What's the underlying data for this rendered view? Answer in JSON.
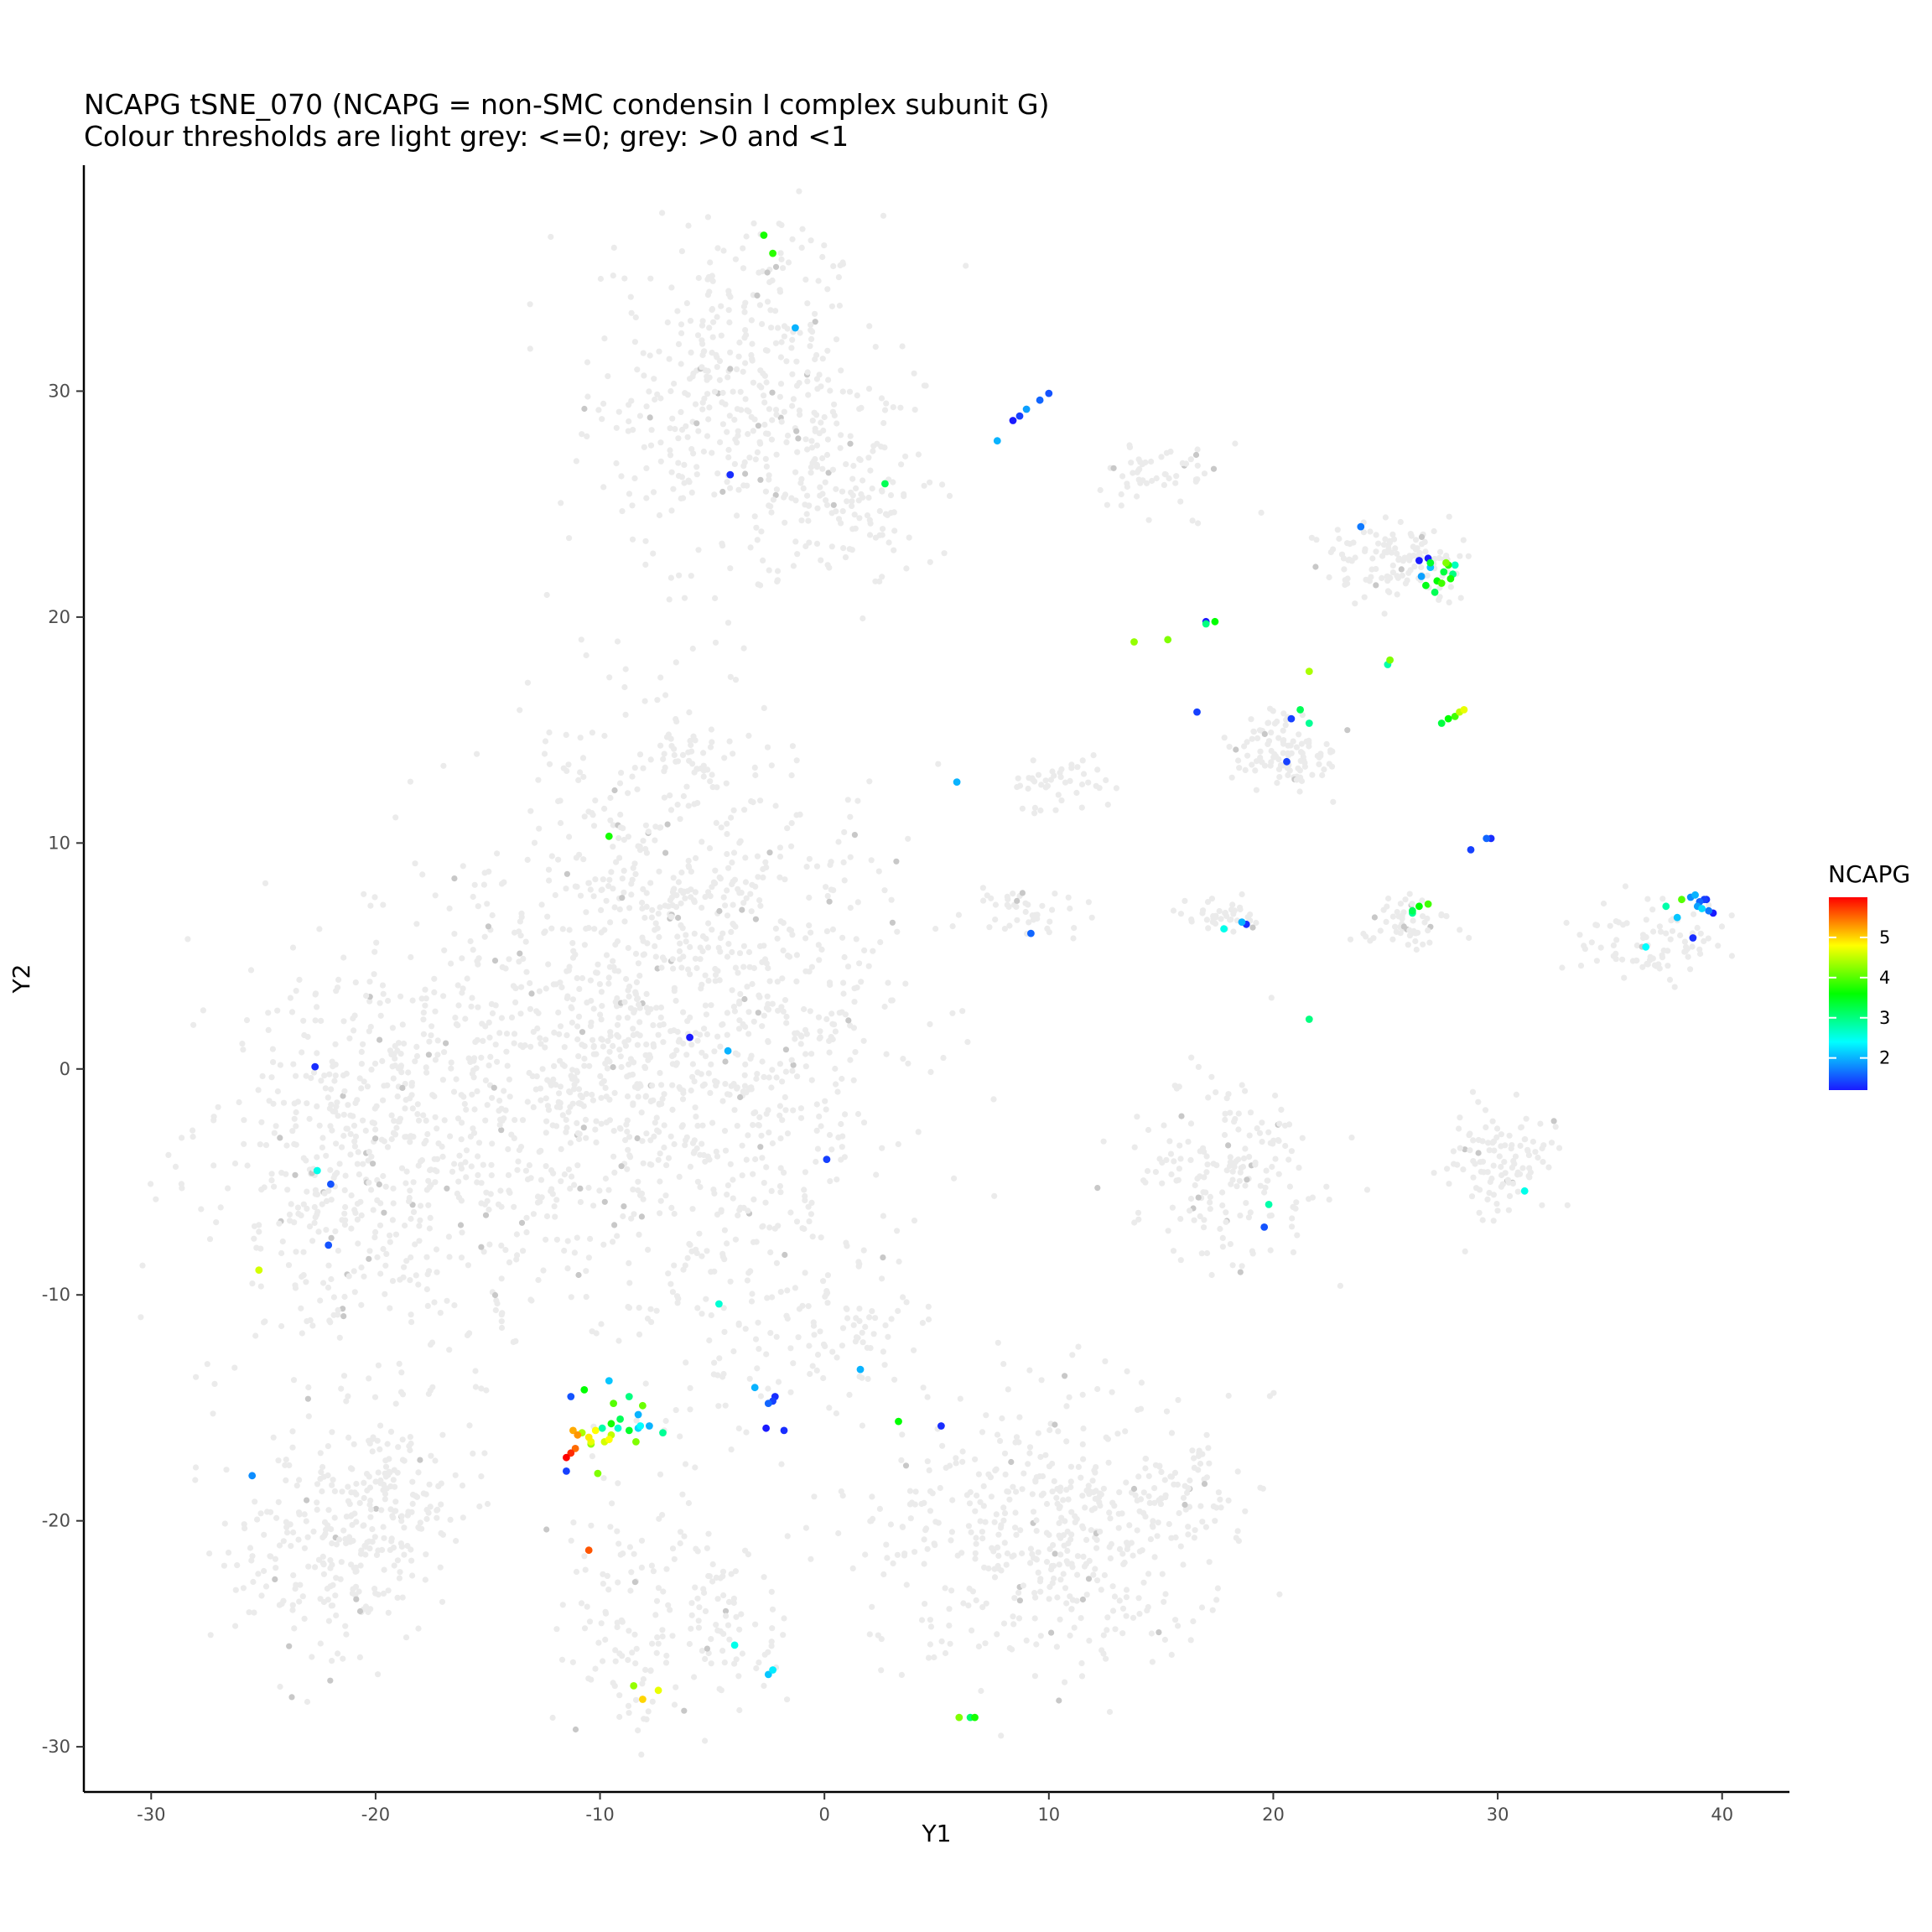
{
  "chart_data": {
    "type": "scatter",
    "title": "NCAPG tSNE_070 (NCAPG = non-SMC condensin I complex subunit G)",
    "subtitle": "Colour thresholds are light grey: <=0; grey: >0 and <1",
    "xlabel": "Y1",
    "ylabel": "Y2",
    "xlim": [
      -33,
      43
    ],
    "ylim": [
      -32,
      40
    ],
    "x_ticks": [
      -30,
      -20,
      -10,
      0,
      10,
      20,
      30,
      40
    ],
    "y_ticks": [
      -30,
      -20,
      -10,
      0,
      10,
      20,
      30
    ],
    "grid": false,
    "legend": {
      "title": "NCAPG",
      "position": "right",
      "min": 1.2,
      "max": 6.0,
      "ticks": [
        2,
        3,
        4,
        5
      ],
      "colors": [
        "#1a1aff",
        "#00ffff",
        "#00ff00",
        "#ffff00",
        "#ff0000"
      ]
    },
    "threshold_colors": {
      "zero": "#ebebeb",
      "low": "#c8c8c8"
    },
    "background_clusters": [
      {
        "cx": -4,
        "cy": 30,
        "sx": 3.2,
        "sy": 3.8,
        "n": 450
      },
      {
        "cx": 1.5,
        "cy": 25,
        "sx": 2,
        "sy": 2,
        "n": 120
      },
      {
        "cx": -21,
        "cy": -4,
        "sx": 3.2,
        "sy": 4.5,
        "n": 500
      },
      {
        "cx": -14,
        "cy": -1,
        "sx": 3,
        "sy": 5.5,
        "n": 350
      },
      {
        "cx": -9,
        "cy": 4,
        "sx": 3,
        "sy": 6,
        "n": 400
      },
      {
        "cx": -5,
        "cy": -2,
        "sx": 3.5,
        "sy": 8,
        "n": 450
      },
      {
        "cx": -2,
        "cy": 3,
        "sx": 3,
        "sy": 5,
        "n": 300
      },
      {
        "cx": -22,
        "cy": -21,
        "sx": 2.5,
        "sy": 2.5,
        "n": 260
      },
      {
        "cx": -19,
        "cy": -18,
        "sx": 1.5,
        "sy": 2,
        "n": 90
      },
      {
        "cx": -8,
        "cy": -24,
        "sx": 2,
        "sy": 3,
        "n": 130
      },
      {
        "cx": -4,
        "cy": -24.5,
        "sx": 1.2,
        "sy": 1.8,
        "n": 60
      },
      {
        "cx": 1.5,
        "cy": -11.5,
        "sx": 1.3,
        "sy": 1.5,
        "n": 60
      },
      {
        "cx": 10,
        "cy": -20.5,
        "sx": 4,
        "sy": 3,
        "n": 480
      },
      {
        "cx": 16,
        "cy": -18.5,
        "sx": 1.3,
        "sy": 1,
        "n": 60
      },
      {
        "cx": 18,
        "cy": -4.5,
        "sx": 2.2,
        "sy": 2,
        "n": 180
      },
      {
        "cx": 30,
        "cy": -4,
        "sx": 1.3,
        "sy": 1.2,
        "n": 110
      },
      {
        "cx": 20.5,
        "cy": 14,
        "sx": 1.2,
        "sy": 0.9,
        "n": 110
      },
      {
        "cx": 25.5,
        "cy": 22.5,
        "sx": 1.6,
        "sy": 0.8,
        "n": 130
      },
      {
        "cx": 10.5,
        "cy": 12.5,
        "sx": 1.2,
        "sy": 0.6,
        "n": 45
      },
      {
        "cx": 18,
        "cy": 6.8,
        "sx": 0.9,
        "sy": 0.4,
        "n": 40
      },
      {
        "cx": 26,
        "cy": 6.5,
        "sx": 1,
        "sy": 0.6,
        "n": 55
      },
      {
        "cx": 37,
        "cy": 5.5,
        "sx": 1.8,
        "sy": 0.9,
        "n": 90
      },
      {
        "cx": 9,
        "cy": 7,
        "sx": 1.2,
        "sy": 0.6,
        "n": 45
      },
      {
        "cx": 15,
        "cy": 26,
        "sx": 1.4,
        "sy": 0.8,
        "n": 55
      },
      {
        "cx": -6,
        "cy": 13.5,
        "sx": 1.3,
        "sy": 0.8,
        "n": 40
      }
    ],
    "points": [
      {
        "x": -2.7,
        "y": 36.9,
        "v": 3.7
      },
      {
        "x": -2.3,
        "y": 36.1,
        "v": 3.8
      },
      {
        "x": -1.3,
        "y": 32.8,
        "v": 2.0
      },
      {
        "x": -4.2,
        "y": 26.3,
        "v": 1.3
      },
      {
        "x": 2.7,
        "y": 25.9,
        "v": 3.2
      },
      {
        "x": 7.7,
        "y": 27.8,
        "v": 2.0
      },
      {
        "x": 8.4,
        "y": 28.7,
        "v": 1.2
      },
      {
        "x": 8.7,
        "y": 28.9,
        "v": 1.4
      },
      {
        "x": 9.0,
        "y": 29.2,
        "v": 1.9
      },
      {
        "x": 9.6,
        "y": 29.6,
        "v": 1.6
      },
      {
        "x": 10.0,
        "y": 29.9,
        "v": 1.5
      },
      {
        "x": 13.8,
        "y": 18.9,
        "v": 4.3
      },
      {
        "x": 15.3,
        "y": 19.0,
        "v": 4.2
      },
      {
        "x": 17.0,
        "y": 19.7,
        "v": 3.0
      },
      {
        "x": 17.0,
        "y": 19.8,
        "v": 1.2
      },
      {
        "x": 17.4,
        "y": 19.8,
        "v": 3.6
      },
      {
        "x": 16.6,
        "y": 15.8,
        "v": 1.4
      },
      {
        "x": 21.6,
        "y": 17.6,
        "v": 4.4
      },
      {
        "x": 25.1,
        "y": 17.9,
        "v": 2.8
      },
      {
        "x": 25.2,
        "y": 18.1,
        "v": 4.2
      },
      {
        "x": 23.9,
        "y": 24.0,
        "v": 1.7
      },
      {
        "x": 21.2,
        "y": 15.9,
        "v": 3.2
      },
      {
        "x": 20.8,
        "y": 15.5,
        "v": 1.4
      },
      {
        "x": 21.6,
        "y": 15.3,
        "v": 2.9
      },
      {
        "x": 20.6,
        "y": 13.6,
        "v": 1.4
      },
      {
        "x": 27.5,
        "y": 15.3,
        "v": 3.3
      },
      {
        "x": 27.8,
        "y": 15.5,
        "v": 3.6
      },
      {
        "x": 28.1,
        "y": 15.6,
        "v": 3.9
      },
      {
        "x": 28.3,
        "y": 15.8,
        "v": 4.5
      },
      {
        "x": 28.5,
        "y": 15.9,
        "v": 4.7
      },
      {
        "x": 26.9,
        "y": 22.6,
        "v": 1.2
      },
      {
        "x": 27.0,
        "y": 22.4,
        "v": 3.4
      },
      {
        "x": 26.6,
        "y": 21.8,
        "v": 1.9
      },
      {
        "x": 27.0,
        "y": 22.2,
        "v": 2.1
      },
      {
        "x": 27.3,
        "y": 21.6,
        "v": 3.6
      },
      {
        "x": 27.6,
        "y": 22.0,
        "v": 3.3
      },
      {
        "x": 27.8,
        "y": 22.3,
        "v": 3.8
      },
      {
        "x": 28.0,
        "y": 21.9,
        "v": 3.0
      },
      {
        "x": 27.2,
        "y": 21.1,
        "v": 3.2
      },
      {
        "x": 27.5,
        "y": 21.5,
        "v": 3.9
      },
      {
        "x": 27.7,
        "y": 22.4,
        "v": 4.2
      },
      {
        "x": 26.8,
        "y": 21.4,
        "v": 3.5
      },
      {
        "x": 27.9,
        "y": 21.7,
        "v": 3.7
      },
      {
        "x": 28.1,
        "y": 22.3,
        "v": 2.7
      },
      {
        "x": 26.5,
        "y": 22.5,
        "v": 1.2
      },
      {
        "x": 28.8,
        "y": 9.7,
        "v": 1.4
      },
      {
        "x": 29.5,
        "y": 10.2,
        "v": 1.6
      },
      {
        "x": 29.7,
        "y": 10.2,
        "v": 1.3
      },
      {
        "x": 26.2,
        "y": 7.0,
        "v": 3.2
      },
      {
        "x": 26.5,
        "y": 7.2,
        "v": 3.6
      },
      {
        "x": 26.9,
        "y": 7.3,
        "v": 3.9
      },
      {
        "x": 26.2,
        "y": 6.9,
        "v": 2.9
      },
      {
        "x": 18.8,
        "y": 6.4,
        "v": 1.3
      },
      {
        "x": 18.6,
        "y": 6.5,
        "v": 2.0
      },
      {
        "x": 17.8,
        "y": 6.2,
        "v": 2.5
      },
      {
        "x": 9.2,
        "y": 6.0,
        "v": 1.6
      },
      {
        "x": 21.6,
        "y": 2.2,
        "v": 3.0
      },
      {
        "x": 5.9,
        "y": 12.7,
        "v": 2.0
      },
      {
        "x": -9.6,
        "y": 10.3,
        "v": 3.7
      },
      {
        "x": -6.0,
        "y": 1.4,
        "v": 1.2
      },
      {
        "x": -4.3,
        "y": 0.8,
        "v": 2.0
      },
      {
        "x": 0.1,
        "y": -4.0,
        "v": 1.4
      },
      {
        "x": -22.7,
        "y": 0.1,
        "v": 1.3
      },
      {
        "x": -22.6,
        "y": -4.5,
        "v": 2.5
      },
      {
        "x": -22.0,
        "y": -5.1,
        "v": 1.5
      },
      {
        "x": -22.1,
        "y": -7.8,
        "v": 1.5
      },
      {
        "x": -25.2,
        "y": -8.9,
        "v": 4.6
      },
      {
        "x": -25.5,
        "y": -18.0,
        "v": 1.8
      },
      {
        "x": 36.6,
        "y": 5.4,
        "v": 2.4
      },
      {
        "x": 37.5,
        "y": 7.2,
        "v": 2.8
      },
      {
        "x": 38.0,
        "y": 6.7,
        "v": 2.1
      },
      {
        "x": 38.2,
        "y": 7.5,
        "v": 4.0
      },
      {
        "x": 38.6,
        "y": 7.6,
        "v": 1.8
      },
      {
        "x": 38.8,
        "y": 7.7,
        "v": 2.0
      },
      {
        "x": 39.0,
        "y": 7.4,
        "v": 1.6
      },
      {
        "x": 39.2,
        "y": 7.5,
        "v": 1.4
      },
      {
        "x": 38.9,
        "y": 7.2,
        "v": 1.9
      },
      {
        "x": 39.1,
        "y": 7.1,
        "v": 2.2
      },
      {
        "x": 39.4,
        "y": 7.0,
        "v": 1.7
      },
      {
        "x": 39.6,
        "y": 6.9,
        "v": 1.2
      },
      {
        "x": 39.3,
        "y": 7.5,
        "v": 1.3
      },
      {
        "x": 38.7,
        "y": 5.8,
        "v": 1.3
      },
      {
        "x": 31.2,
        "y": -5.4,
        "v": 2.5
      },
      {
        "x": 19.8,
        "y": -6.0,
        "v": 2.8
      },
      {
        "x": 19.6,
        "y": -7.0,
        "v": 1.5
      },
      {
        "x": -4.7,
        "y": -10.4,
        "v": 2.6
      },
      {
        "x": 1.6,
        "y": -13.3,
        "v": 2.0
      },
      {
        "x": 3.3,
        "y": -15.6,
        "v": 3.6
      },
      {
        "x": 5.2,
        "y": -15.8,
        "v": 1.3
      },
      {
        "x": -3.1,
        "y": -14.1,
        "v": 2.0
      },
      {
        "x": -2.5,
        "y": -14.8,
        "v": 1.6
      },
      {
        "x": -2.3,
        "y": -14.7,
        "v": 1.4
      },
      {
        "x": -2.6,
        "y": -15.9,
        "v": 1.2
      },
      {
        "x": -1.8,
        "y": -16.0,
        "v": 1.3
      },
      {
        "x": -2.2,
        "y": -14.5,
        "v": 1.3
      },
      {
        "x": -11.3,
        "y": -14.5,
        "v": 1.5
      },
      {
        "x": -10.7,
        "y": -14.2,
        "v": 3.6
      },
      {
        "x": -9.6,
        "y": -13.8,
        "v": 2.1
      },
      {
        "x": -9.4,
        "y": -14.8,
        "v": 4.0
      },
      {
        "x": -8.7,
        "y": -14.5,
        "v": 3.0
      },
      {
        "x": -8.3,
        "y": -15.3,
        "v": 2.0
      },
      {
        "x": -8.1,
        "y": -14.9,
        "v": 4.1
      },
      {
        "x": -9.1,
        "y": -15.5,
        "v": 3.2
      },
      {
        "x": -9.5,
        "y": -15.7,
        "v": 3.7
      },
      {
        "x": -9.9,
        "y": -15.9,
        "v": 2.8
      },
      {
        "x": -10.2,
        "y": -16.0,
        "v": 4.8
      },
      {
        "x": -10.5,
        "y": -16.3,
        "v": 4.9
      },
      {
        "x": -10.8,
        "y": -16.1,
        "v": 4.4
      },
      {
        "x": -11.0,
        "y": -16.2,
        "v": 5.3
      },
      {
        "x": -11.2,
        "y": -16.0,
        "v": 5.2
      },
      {
        "x": -10.4,
        "y": -16.5,
        "v": 4.7
      },
      {
        "x": -9.8,
        "y": -16.5,
        "v": 4.6
      },
      {
        "x": -9.5,
        "y": -16.2,
        "v": 4.5
      },
      {
        "x": -9.6,
        "y": -16.4,
        "v": 4.8
      },
      {
        "x": -9.2,
        "y": -15.9,
        "v": 2.6
      },
      {
        "x": -8.7,
        "y": -16.0,
        "v": 3.4
      },
      {
        "x": -8.4,
        "y": -16.5,
        "v": 4.2
      },
      {
        "x": -8.2,
        "y": -15.8,
        "v": 2.4
      },
      {
        "x": -7.8,
        "y": -15.8,
        "v": 2.0
      },
      {
        "x": -7.2,
        "y": -16.1,
        "v": 2.9
      },
      {
        "x": -8.3,
        "y": -15.9,
        "v": 2.2
      },
      {
        "x": -11.1,
        "y": -16.8,
        "v": 5.5
      },
      {
        "x": -11.3,
        "y": -17.0,
        "v": 5.8
      },
      {
        "x": -11.5,
        "y": -17.2,
        "v": 6.0
      },
      {
        "x": -11.5,
        "y": -17.8,
        "v": 1.4
      },
      {
        "x": -10.1,
        "y": -17.9,
        "v": 4.2
      },
      {
        "x": -10.4,
        "y": -16.6,
        "v": 4.3
      },
      {
        "x": -10.5,
        "y": -21.3,
        "v": 5.6
      },
      {
        "x": -4.0,
        "y": -25.5,
        "v": 2.5
      },
      {
        "x": -2.5,
        "y": -26.8,
        "v": 2.1
      },
      {
        "x": -2.3,
        "y": -26.6,
        "v": 2.3
      },
      {
        "x": -8.5,
        "y": -27.3,
        "v": 4.3
      },
      {
        "x": -7.4,
        "y": -27.5,
        "v": 4.7
      },
      {
        "x": -8.1,
        "y": -27.9,
        "v": 5.0
      },
      {
        "x": 6.0,
        "y": -28.7,
        "v": 4.2
      },
      {
        "x": 6.5,
        "y": -28.7,
        "v": 3.1
      },
      {
        "x": 6.7,
        "y": -28.7,
        "v": 3.7
      }
    ]
  }
}
